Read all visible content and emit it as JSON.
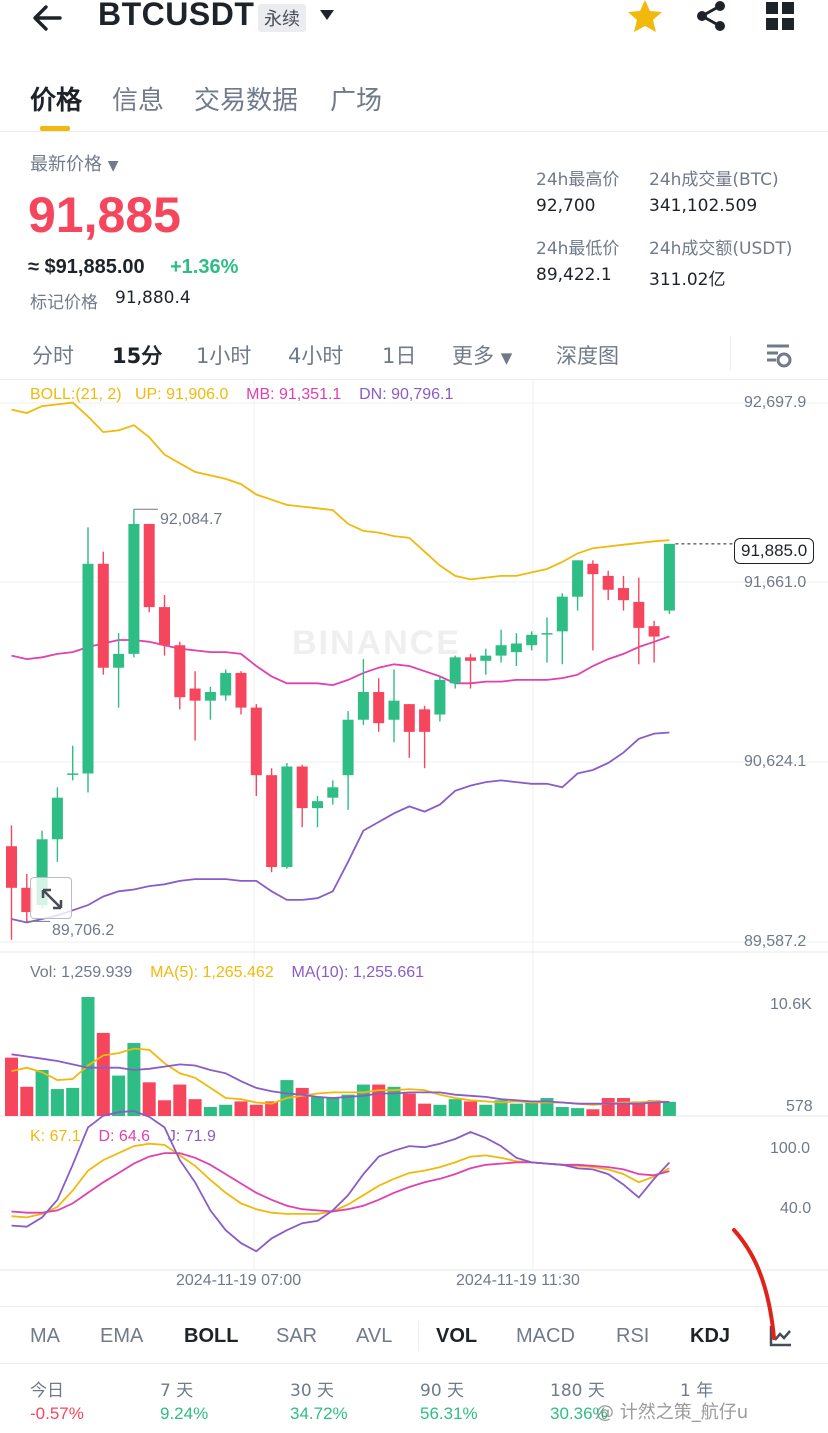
{
  "header": {
    "symbol": "BTCUSDT",
    "contract_type": "永续"
  },
  "tabs": [
    {
      "label": "价格",
      "active": true
    },
    {
      "label": "信息",
      "active": false
    },
    {
      "label": "交易数据",
      "active": false
    },
    {
      "label": "广场",
      "active": false
    }
  ],
  "price": {
    "latest_label": "最新价格",
    "last": "91,885",
    "usd": "≈ $91,885.00",
    "change_pct": "+1.36%",
    "mark_label": "标记价格",
    "mark_value": "91,880.4"
  },
  "stats": {
    "high_label": "24h最高价",
    "high": "92,700",
    "low_label": "24h最低价",
    "low": "89,422.1",
    "vol_btc_label": "24h成交量(BTC)",
    "vol_btc": "341,102.509",
    "vol_usdt_label": "24h成交额(USDT)",
    "vol_usdt": "311.02亿"
  },
  "intervals": [
    {
      "label": "分时",
      "active": false
    },
    {
      "label": "15分",
      "active": true
    },
    {
      "label": "1小时",
      "active": false
    },
    {
      "label": "4小时",
      "active": false
    },
    {
      "label": "1日",
      "active": false
    },
    {
      "label": "更多",
      "active": false
    },
    {
      "label": "深度图",
      "active": false
    }
  ],
  "legends": {
    "boll": "BOLL:(21, 2)",
    "up": "UP: 91,906.0",
    "mb": "MB: 91,351.1",
    "dn": "DN: 90,796.1",
    "vol": "Vol: 1,259.939",
    "ma5": "MA(5): 1,265.462",
    "ma10": "MA(10): 1,255.661",
    "k": "K: 67.1",
    "d": "D: 64.6",
    "j": "J: 71.9"
  },
  "axes": {
    "price_ticks": [
      "92,697.9",
      "91,661.0",
      "90,624.1",
      "89,587.2"
    ],
    "volume_ticks": [
      "10.6K",
      "578"
    ],
    "kdj_ticks": [
      "100.0",
      "40.0"
    ],
    "dates": [
      "2024-11-19 07:00",
      "2024-11-19 11:30"
    ],
    "high_marker": "92,084.7",
    "low_marker": "89,706.2",
    "current_price": "91,885.0",
    "watermark": "BINANCE"
  },
  "indicators": [
    {
      "label": "MA",
      "active": false
    },
    {
      "label": "EMA",
      "active": false
    },
    {
      "label": "BOLL",
      "active": true
    },
    {
      "label": "SAR",
      "active": false
    },
    {
      "label": "AVL",
      "active": false
    },
    {
      "label": "VOL",
      "active": true
    },
    {
      "label": "MACD",
      "active": false
    },
    {
      "label": "RSI",
      "active": false
    },
    {
      "label": "KDJ",
      "active": true
    }
  ],
  "performance": [
    {
      "label": "今日",
      "value": "-0.57%",
      "dir": "down"
    },
    {
      "label": "7 天",
      "value": "9.24%",
      "dir": "up"
    },
    {
      "label": "30 天",
      "value": "34.72%",
      "dir": "up"
    },
    {
      "label": "90 天",
      "value": "56.31%",
      "dir": "up"
    },
    {
      "label": "180 天",
      "value": "30.36%",
      "dir": "up"
    },
    {
      "label": "1 年",
      "value": "",
      "dir": "up"
    }
  ],
  "watermark_text": "@ 计然之策_航仔u",
  "colors": {
    "up": "#2ebd85",
    "down": "#f6465d",
    "accent": "#f0b90b",
    "boll_up": "#f0b90b",
    "boll_mb": "#e040b0",
    "boll_dn": "#8a5cc7"
  },
  "chart_data": {
    "type": "candlestick",
    "interval": "15m",
    "candles": [
      {
        "o": 90140,
        "h": 90260,
        "l": 89600,
        "c": 89900
      },
      {
        "o": 89900,
        "h": 89980,
        "l": 89706.2,
        "c": 89760
      },
      {
        "o": 89800,
        "h": 90230,
        "l": 89780,
        "c": 90180
      },
      {
        "o": 90180,
        "h": 90480,
        "l": 90050,
        "c": 90420
      },
      {
        "o": 90560,
        "h": 90720,
        "l": 90520,
        "c": 90560
      },
      {
        "o": 90560,
        "h": 91980,
        "l": 90450,
        "c": 91770
      },
      {
        "o": 91770,
        "h": 91840,
        "l": 91130,
        "c": 91170
      },
      {
        "o": 91170,
        "h": 91370,
        "l": 90940,
        "c": 91250
      },
      {
        "o": 91250,
        "h": 92084.7,
        "l": 91230,
        "c": 92000
      },
      {
        "o": 92000,
        "h": 92000,
        "l": 91490,
        "c": 91520
      },
      {
        "o": 91520,
        "h": 91590,
        "l": 91240,
        "c": 91300
      },
      {
        "o": 91300,
        "h": 91320,
        "l": 90930,
        "c": 91000
      },
      {
        "o": 91050,
        "h": 91150,
        "l": 90750,
        "c": 90980
      },
      {
        "o": 90980,
        "h": 91060,
        "l": 90870,
        "c": 91030
      },
      {
        "o": 91010,
        "h": 91160,
        "l": 90980,
        "c": 91140
      },
      {
        "o": 91140,
        "h": 91150,
        "l": 90900,
        "c": 90940
      },
      {
        "o": 90940,
        "h": 90960,
        "l": 90430,
        "c": 90550
      },
      {
        "o": 90550,
        "h": 90590,
        "l": 89990,
        "c": 90020
      },
      {
        "o": 90020,
        "h": 90620,
        "l": 90010,
        "c": 90600
      },
      {
        "o": 90600,
        "h": 90610,
        "l": 90250,
        "c": 90360
      },
      {
        "o": 90360,
        "h": 90430,
        "l": 90250,
        "c": 90400
      },
      {
        "o": 90420,
        "h": 90520,
        "l": 90380,
        "c": 90480
      },
      {
        "o": 90550,
        "h": 90920,
        "l": 90350,
        "c": 90870
      },
      {
        "o": 90870,
        "h": 91220,
        "l": 90840,
        "c": 91030
      },
      {
        "o": 91030,
        "h": 91110,
        "l": 90800,
        "c": 90850
      },
      {
        "o": 90870,
        "h": 91160,
        "l": 90740,
        "c": 90980
      },
      {
        "o": 90960,
        "h": 90960,
        "l": 90650,
        "c": 90800
      },
      {
        "o": 90930,
        "h": 90950,
        "l": 90590,
        "c": 90800
      },
      {
        "o": 90900,
        "h": 91120,
        "l": 90860,
        "c": 91100
      },
      {
        "o": 91080,
        "h": 91240,
        "l": 91050,
        "c": 91230
      },
      {
        "o": 91230,
        "h": 91250,
        "l": 91050,
        "c": 91210
      },
      {
        "o": 91210,
        "h": 91280,
        "l": 91130,
        "c": 91240
      },
      {
        "o": 91240,
        "h": 91390,
        "l": 91200,
        "c": 91300
      },
      {
        "o": 91260,
        "h": 91370,
        "l": 91180,
        "c": 91310
      },
      {
        "o": 91300,
        "h": 91380,
        "l": 91270,
        "c": 91360
      },
      {
        "o": 91370,
        "h": 91460,
        "l": 91200,
        "c": 91370
      },
      {
        "o": 91380,
        "h": 91600,
        "l": 91190,
        "c": 91580
      },
      {
        "o": 91580,
        "h": 91790,
        "l": 91500,
        "c": 91790
      },
      {
        "o": 91770,
        "h": 91790,
        "l": 91270,
        "c": 91710
      },
      {
        "o": 91700,
        "h": 91730,
        "l": 91560,
        "c": 91620
      },
      {
        "o": 91630,
        "h": 91700,
        "l": 91500,
        "c": 91560
      },
      {
        "o": 91550,
        "h": 91690,
        "l": 91190,
        "c": 91400
      },
      {
        "o": 91410,
        "h": 91440,
        "l": 91200,
        "c": 91350
      },
      {
        "o": 91500,
        "h": 91885.0,
        "l": 91480,
        "c": 91885
      }
    ],
    "boll": {
      "up": [
        92660,
        92640,
        92680,
        92690,
        92700,
        92620,
        92530,
        92540,
        92570,
        92500,
        92400,
        92350,
        92300,
        92280,
        92260,
        92230,
        92170,
        92140,
        92110,
        92100,
        92090,
        92080,
        92000,
        91960,
        91950,
        91930,
        91920,
        91840,
        91760,
        91700,
        91680,
        91690,
        91700,
        91700,
        91720,
        91740,
        91780,
        91830,
        91860,
        91870,
        91880,
        91890,
        91900,
        91906
      ],
      "mb": [
        91240,
        91220,
        91230,
        91250,
        91260,
        91290,
        91310,
        91330,
        91330,
        91320,
        91300,
        91280,
        91270,
        91260,
        91260,
        91250,
        91180,
        91120,
        91080,
        91080,
        91080,
        91070,
        91100,
        91140,
        91170,
        91190,
        91180,
        91150,
        91120,
        91080,
        91080,
        91090,
        91090,
        91100,
        91100,
        91100,
        91110,
        91130,
        91180,
        91220,
        91250,
        91290,
        91320,
        91351
      ],
      "dn": [
        89720,
        89700,
        89720,
        89740,
        89770,
        89800,
        89850,
        89880,
        89890,
        89910,
        89920,
        89940,
        89950,
        89950,
        89950,
        89940,
        89940,
        89880,
        89830,
        89830,
        89840,
        89880,
        90050,
        90230,
        90280,
        90330,
        90370,
        90340,
        90380,
        90460,
        90490,
        90510,
        90520,
        90510,
        90500,
        90500,
        90480,
        90560,
        90580,
        90620,
        90680,
        90760,
        90790,
        90796
      ]
    },
    "volume": [
      5200,
      2600,
      4100,
      2400,
      2500,
      10600,
      7400,
      3600,
      6500,
      3000,
      1400,
      2800,
      1500,
      800,
      1000,
      1300,
      1000,
      1300,
      3200,
      2500,
      1700,
      1600,
      1900,
      2800,
      2800,
      2600,
      2000,
      1100,
      1000,
      1500,
      1300,
      1000,
      1400,
      1100,
      1200,
      1600,
      800,
      700,
      600,
      1600,
      1600,
      1300,
      1400,
      1259.939
    ],
    "ma5": [
      4000,
      4300,
      3900,
      3200,
      3300,
      4500,
      5400,
      5600,
      6000,
      5900,
      4700,
      3800,
      3400,
      2500,
      1600,
      1500,
      1200,
      1100,
      1600,
      1800,
      2000,
      2100,
      2100,
      2100,
      2300,
      2300,
      2400,
      2300,
      1900,
      1600,
      1400,
      1300,
      1200,
      1300,
      1200,
      1200,
      1200,
      1100,
      1000,
      1100,
      1200,
      1200,
      1300,
      1265
    ],
    "ma10": [
      5500,
      5300,
      5100,
      4900,
      4600,
      4300,
      4300,
      4300,
      4100,
      4200,
      4400,
      4600,
      4500,
      4100,
      3800,
      3100,
      2500,
      2200,
      2000,
      1900,
      1700,
      1600,
      1700,
      1800,
      2000,
      2000,
      2100,
      2100,
      2100,
      1900,
      1800,
      1700,
      1500,
      1400,
      1300,
      1300,
      1200,
      1100,
      1100,
      1100,
      1100,
      1100,
      1200,
      1256
    ],
    "kdj": {
      "k": [
        26,
        25,
        28,
        34,
        48,
        65,
        74,
        80,
        86,
        88,
        87,
        78,
        69,
        57,
        46,
        37,
        32,
        29,
        28,
        28,
        28,
        30,
        36,
        44,
        52,
        58,
        63,
        65,
        68,
        72,
        77,
        78,
        76,
        73,
        72,
        71,
        70,
        69,
        68,
        66,
        62,
        55,
        60,
        67.1
      ],
      "d": [
        30,
        29,
        29,
        31,
        37,
        46,
        55,
        63,
        71,
        77,
        80,
        80,
        76,
        70,
        62,
        54,
        46,
        40,
        35,
        32,
        31,
        30,
        32,
        35,
        40,
        46,
        51,
        55,
        58,
        62,
        67,
        70,
        71,
        72,
        72,
        71,
        70,
        70,
        69,
        68,
        66,
        62,
        61,
        64.6
      ],
      "j": [
        18,
        17,
        25,
        40,
        70,
        102,
        112,
        115,
        116,
        111,
        102,
        74,
        55,
        31,
        14,
        3,
        -4,
        7,
        14,
        20,
        22,
        31,
        44,
        62,
        77,
        82,
        86,
        85,
        88,
        92,
        98,
        93,
        86,
        76,
        72,
        71,
        70,
        67,
        66,
        62,
        53,
        42,
        58,
        71.9
      ]
    },
    "price_range": [
      89587.2,
      92697.9
    ],
    "volume_range": [
      0,
      10600
    ],
    "kdj_range": [
      -20,
      110
    ]
  }
}
